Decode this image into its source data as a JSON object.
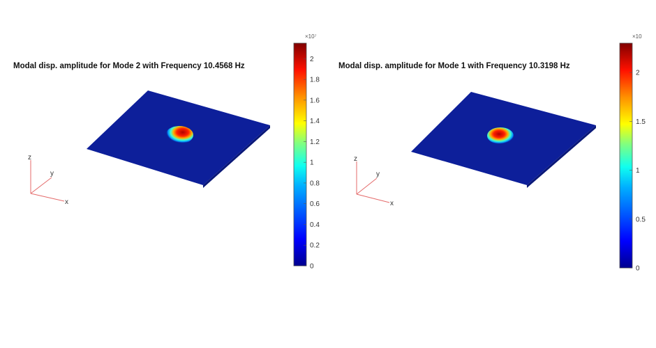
{
  "panels": [
    {
      "title": "Modal disp. amplitude for Mode 2 with Frequency 10.4568 Hz",
      "colorbar": {
        "multiplier": "×10⁷",
        "ticks": [
          "0",
          "0.2",
          "0.4",
          "0.6",
          "0.8",
          "1",
          "1.2",
          "1.4",
          "1.6",
          "1.8",
          "2"
        ],
        "tick_values": [
          0,
          0.2,
          0.4,
          0.6,
          0.8,
          1,
          1.2,
          1.4,
          1.6,
          1.8,
          2
        ],
        "max_value": 2.15
      },
      "axes": {
        "x": "x",
        "y": "y",
        "z": "z"
      }
    },
    {
      "title": "Modal disp. amplitude for Mode 1 with Frequency 10.3198 Hz",
      "colorbar": {
        "multiplier": "×10",
        "ticks": [
          "0",
          "0.5",
          "1",
          "1.5",
          "2"
        ],
        "tick_values": [
          0,
          0.5,
          1,
          1.5,
          2
        ],
        "max_value": 2.3
      },
      "axes": {
        "x": "x",
        "y": "y",
        "z": "z"
      }
    }
  ],
  "colors": {
    "plate": "#0d1f9a",
    "colormap": [
      "#00008f",
      "#0000ff",
      "#00b0ff",
      "#10ffef",
      "#80ff80",
      "#ffff00",
      "#ff9000",
      "#ff1000",
      "#800000"
    ],
    "axis_triad": "#e46a6a"
  }
}
